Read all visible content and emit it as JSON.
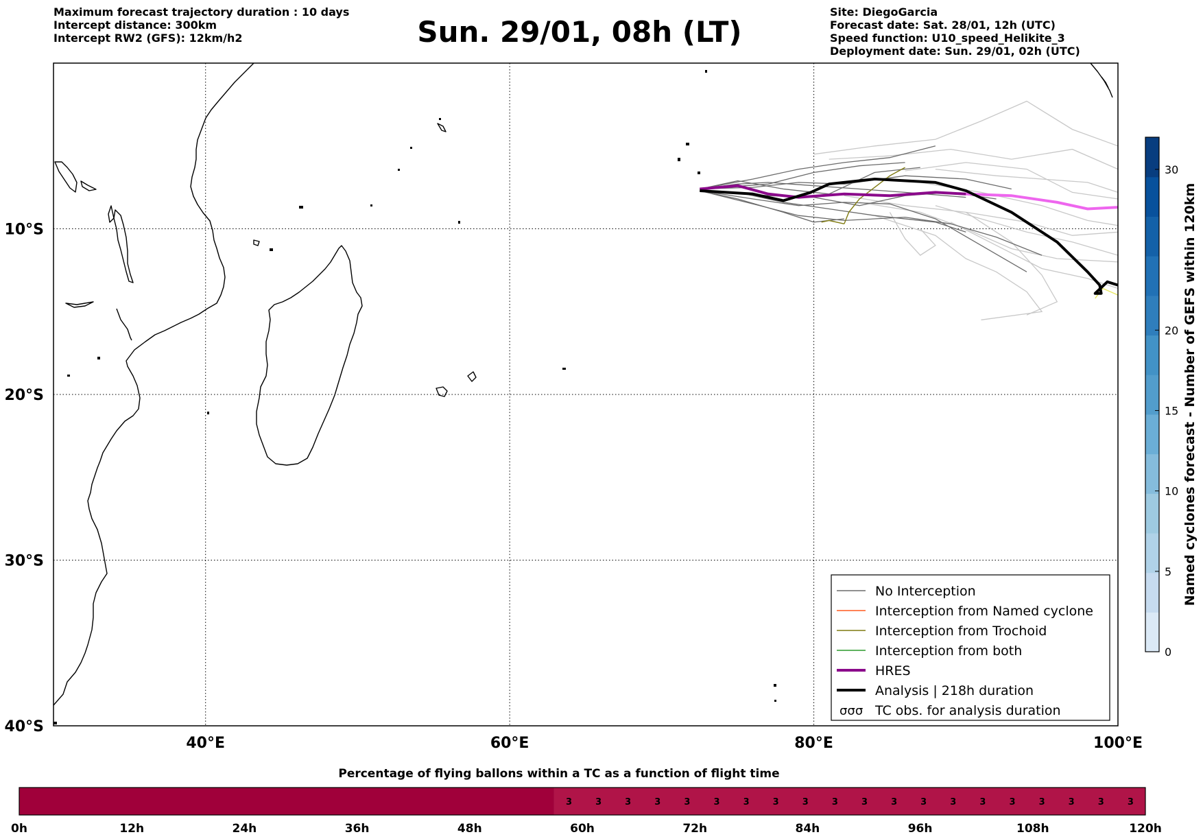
{
  "header": {
    "left_lines": [
      "Maximum forecast trajectory duration : 10 days",
      "Intercept distance: 300km",
      "Intercept RW2 (GFS):  12km/h2"
    ],
    "title": "Sun. 29/01, 08h (LT)",
    "right_lines": [
      "Site: DiegoGarcia",
      "Forecast date: Sat. 28/01, 12h (UTC)",
      "Speed function: U10_speed_Helikite_3",
      "Deployment date: Sun. 29/01, 02h (UTC)"
    ]
  },
  "map": {
    "lon_range": [
      30,
      100
    ],
    "lat_range": [
      -40,
      0
    ],
    "lon_ticks": [
      {
        "value": 40,
        "label": "40°E"
      },
      {
        "value": 60,
        "label": "60°E"
      },
      {
        "value": 80,
        "label": "80°E"
      },
      {
        "value": 100,
        "label": "100°E"
      }
    ],
    "lat_ticks": [
      {
        "value": -10,
        "label": "10°S"
      },
      {
        "value": -20,
        "label": "20°S"
      },
      {
        "value": -30,
        "label": "30°S"
      },
      {
        "value": -40,
        "label": "40°S"
      }
    ],
    "grid": "dotted",
    "colors": {
      "no_interception": "#6b6b6b",
      "no_interception_light": "#c8c8c8",
      "named_cyclone": "#ff5a1f",
      "trochoid": "#7f7a10",
      "both": "#2a9a2a",
      "hres": "#8b0a8b",
      "hres_tail": "#ee66ee",
      "analysis": "#000000",
      "tc_obs": "#e8e860"
    },
    "tracks": {
      "hres": [
        [
          72.5,
          -7.6
        ],
        [
          75,
          -7.4
        ],
        [
          77,
          -7.9
        ],
        [
          79,
          -8.1
        ],
        [
          82,
          -7.9
        ],
        [
          85,
          -8.0
        ],
        [
          88,
          -7.8
        ],
        [
          90,
          -7.9
        ],
        [
          93,
          -8.0
        ],
        [
          96,
          -8.4
        ],
        [
          98,
          -8.8
        ],
        [
          100,
          -8.7
        ]
      ],
      "analysis": [
        [
          72.5,
          -7.7
        ],
        [
          76,
          -7.9
        ],
        [
          78,
          -8.3
        ],
        [
          79.8,
          -7.8
        ],
        [
          81,
          -7.3
        ],
        [
          84,
          -7.0
        ],
        [
          88,
          -7.2
        ],
        [
          90,
          -7.7
        ],
        [
          93,
          -9.0
        ],
        [
          96,
          -10.8
        ],
        [
          98,
          -12.6
        ],
        [
          98.8,
          -13.4
        ],
        [
          98.9,
          -13.9
        ],
        [
          98.5,
          -13.9
        ],
        [
          99.3,
          -13.2
        ],
        [
          100,
          -13.4
        ]
      ],
      "trochoid": [
        [
          82,
          -9.7
        ],
        [
          82.3,
          -9.0
        ],
        [
          83,
          -8.2
        ],
        [
          84,
          -7.5
        ],
        [
          85,
          -6.8
        ],
        [
          86,
          -6.3
        ]
      ],
      "trochoid2": [
        [
          80.5,
          -9.6
        ],
        [
          81,
          -9.5
        ],
        [
          82,
          -9.7
        ]
      ],
      "tc_obs": [
        [
          98.5,
          -14.2
        ],
        [
          99,
          -13.6
        ],
        [
          100,
          -14.0
        ]
      ],
      "ensemble_dark": [
        [
          [
            72.5,
            -7.6
          ],
          [
            75,
            -7.3
          ],
          [
            77,
            -7.2
          ],
          [
            80,
            -7.4
          ],
          [
            83,
            -7.6
          ],
          [
            86,
            -7.8
          ],
          [
            90,
            -8.1
          ]
        ],
        [
          [
            72.5,
            -7.7
          ],
          [
            75,
            -7.8
          ],
          [
            78,
            -8.4
          ],
          [
            81,
            -8.8
          ],
          [
            84,
            -9.2
          ],
          [
            88,
            -9.6
          ],
          [
            90,
            -10.2
          ]
        ],
        [
          [
            72.5,
            -7.7
          ],
          [
            76,
            -8.2
          ],
          [
            79,
            -8.6
          ],
          [
            82,
            -8.4
          ],
          [
            85,
            -8.5
          ],
          [
            88,
            -9.4
          ],
          [
            91,
            -11.0
          ],
          [
            94,
            -12.6
          ]
        ],
        [
          [
            72.5,
            -7.6
          ],
          [
            76,
            -7.0
          ],
          [
            79,
            -6.4
          ],
          [
            82,
            -6.0
          ],
          [
            85,
            -5.7
          ],
          [
            88,
            -5.0
          ]
        ],
        [
          [
            72.5,
            -7.7
          ],
          [
            77,
            -8.0
          ],
          [
            80,
            -8.1
          ],
          [
            83,
            -8.6
          ],
          [
            86,
            -8.0
          ],
          [
            89,
            -7.8
          ],
          [
            92,
            -8.2
          ]
        ],
        [
          [
            72.5,
            -7.6
          ],
          [
            75,
            -7.1
          ],
          [
            78,
            -7.6
          ],
          [
            81,
            -7.9
          ],
          [
            84,
            -6.6
          ],
          [
            87,
            -6.3
          ]
        ],
        [
          [
            72.5,
            -7.7
          ],
          [
            76,
            -8.5
          ],
          [
            79,
            -9.2
          ],
          [
            82,
            -9.5
          ],
          [
            86,
            -9.3
          ],
          [
            89,
            -9.7
          ],
          [
            92,
            -10.5
          ],
          [
            95,
            -11.6
          ]
        ],
        [
          [
            72.5,
            -7.6
          ],
          [
            76,
            -7.5
          ],
          [
            79,
            -7.2
          ],
          [
            82,
            -7.3
          ],
          [
            86,
            -6.8
          ],
          [
            90,
            -7.0
          ],
          [
            93,
            -7.6
          ]
        ],
        [
          [
            72.5,
            -7.7
          ],
          [
            75,
            -8.2
          ],
          [
            78,
            -9.0
          ],
          [
            80,
            -9.6
          ],
          [
            82,
            -9.4
          ]
        ],
        [
          [
            72.5,
            -7.6
          ],
          [
            77,
            -7.3
          ],
          [
            80,
            -6.6
          ],
          [
            83,
            -6.2
          ],
          [
            86,
            -6.0
          ]
        ]
      ],
      "ensemble_light": [
        [
          [
            80,
            -5.5
          ],
          [
            84,
            -5.0
          ],
          [
            88,
            -4.6
          ],
          [
            91,
            -3.5
          ],
          [
            94,
            -2.3
          ],
          [
            97,
            -4.0
          ],
          [
            100,
            -5.0
          ]
        ],
        [
          [
            81,
            -5.8
          ],
          [
            85,
            -5.6
          ],
          [
            89,
            -5.2
          ],
          [
            93,
            -5.8
          ],
          [
            97,
            -5.2
          ],
          [
            100,
            -6.4
          ]
        ],
        [
          [
            82,
            -8.0
          ],
          [
            86,
            -8.6
          ],
          [
            90,
            -9.0
          ],
          [
            94,
            -9.6
          ],
          [
            97,
            -10.4
          ],
          [
            100,
            -10.2
          ]
        ],
        [
          [
            83,
            -8.4
          ],
          [
            87,
            -9.0
          ],
          [
            90,
            -10.0
          ],
          [
            93,
            -11.2
          ],
          [
            96,
            -11.8
          ],
          [
            100,
            -12.0
          ]
        ],
        [
          [
            84,
            -9.2
          ],
          [
            88,
            -10.4
          ],
          [
            90,
            -11.8
          ],
          [
            92,
            -12.6
          ],
          [
            94,
            -13.8
          ],
          [
            95,
            -15.0
          ],
          [
            91,
            -15.5
          ]
        ],
        [
          [
            85,
            -9.0
          ],
          [
            86,
            -10.6
          ],
          [
            87,
            -11.6
          ],
          [
            88,
            -11.0
          ],
          [
            87,
            -10.0
          ]
        ],
        [
          [
            86,
            -6.5
          ],
          [
            90,
            -6.0
          ],
          [
            94,
            -6.4
          ],
          [
            97,
            -7.8
          ],
          [
            100,
            -8.2
          ]
        ],
        [
          [
            87,
            -7.2
          ],
          [
            91,
            -7.8
          ],
          [
            95,
            -8.6
          ],
          [
            98,
            -9.5
          ],
          [
            100,
            -9.8
          ]
        ],
        [
          [
            88,
            -8.6
          ],
          [
            91,
            -9.4
          ],
          [
            94,
            -10.2
          ],
          [
            97,
            -10.8
          ],
          [
            100,
            -11.6
          ]
        ],
        [
          [
            89,
            -9.6
          ],
          [
            92,
            -11.0
          ],
          [
            95,
            -12.4
          ],
          [
            98,
            -13.0
          ],
          [
            100,
            -13.6
          ]
        ],
        [
          [
            88,
            -6.4
          ],
          [
            92,
            -6.8
          ],
          [
            95,
            -7.0
          ],
          [
            98,
            -7.2
          ],
          [
            100,
            -7.8
          ]
        ],
        [
          [
            90,
            -9.0
          ],
          [
            93,
            -10.8
          ],
          [
            95,
            -12.8
          ],
          [
            96,
            -14.4
          ],
          [
            94,
            -15.2
          ]
        ]
      ]
    },
    "legend": {
      "entries": [
        {
          "label": "No Interception",
          "style": "no_interception"
        },
        {
          "label": "Interception from Named cyclone",
          "style": "named_cyclone"
        },
        {
          "label": "Interception from Trochoid",
          "style": "trochoid"
        },
        {
          "label": "Interception from both",
          "style": "both"
        },
        {
          "label": "HRES",
          "style": "hres"
        },
        {
          "label": "Analysis | 218h duration",
          "style": "analysis"
        },
        {
          "label": "TC obs. for analysis duration",
          "style": "tc_obs"
        }
      ],
      "placement": "lower-right"
    }
  },
  "colorbar": {
    "label": "Named cyclones forecast - Number of GEFS within 120km",
    "min": 0,
    "max": 32,
    "ticks": [
      0,
      5,
      10,
      15,
      20,
      30
    ],
    "colors": [
      "#dbe9f6",
      "#c6dbef",
      "#b0d2e8",
      "#9ecae1",
      "#85bcdc",
      "#6baed6",
      "#529dcc",
      "#4292c6",
      "#2f7ebc",
      "#2171b5",
      "#1461a8",
      "#08519c",
      "#083d7f"
    ]
  },
  "flight_bar": {
    "title": "Percentage of flying ballons within a TC as a function of flight time",
    "time_range_h": [
      0,
      120
    ],
    "tick_labels": [
      "0h",
      "12h",
      "24h",
      "36h",
      "48h",
      "60h",
      "72h",
      "84h",
      "96h",
      "108h",
      "120h"
    ],
    "segment_change_h": 57,
    "first_color": "#a0003a",
    "second_color": "#b01448",
    "cell_values": [
      "3",
      "3",
      "3",
      "3",
      "3",
      "3",
      "3",
      "3",
      "3",
      "3",
      "3",
      "3",
      "3",
      "3",
      "3",
      "3",
      "3",
      "3",
      "3",
      "3"
    ]
  }
}
